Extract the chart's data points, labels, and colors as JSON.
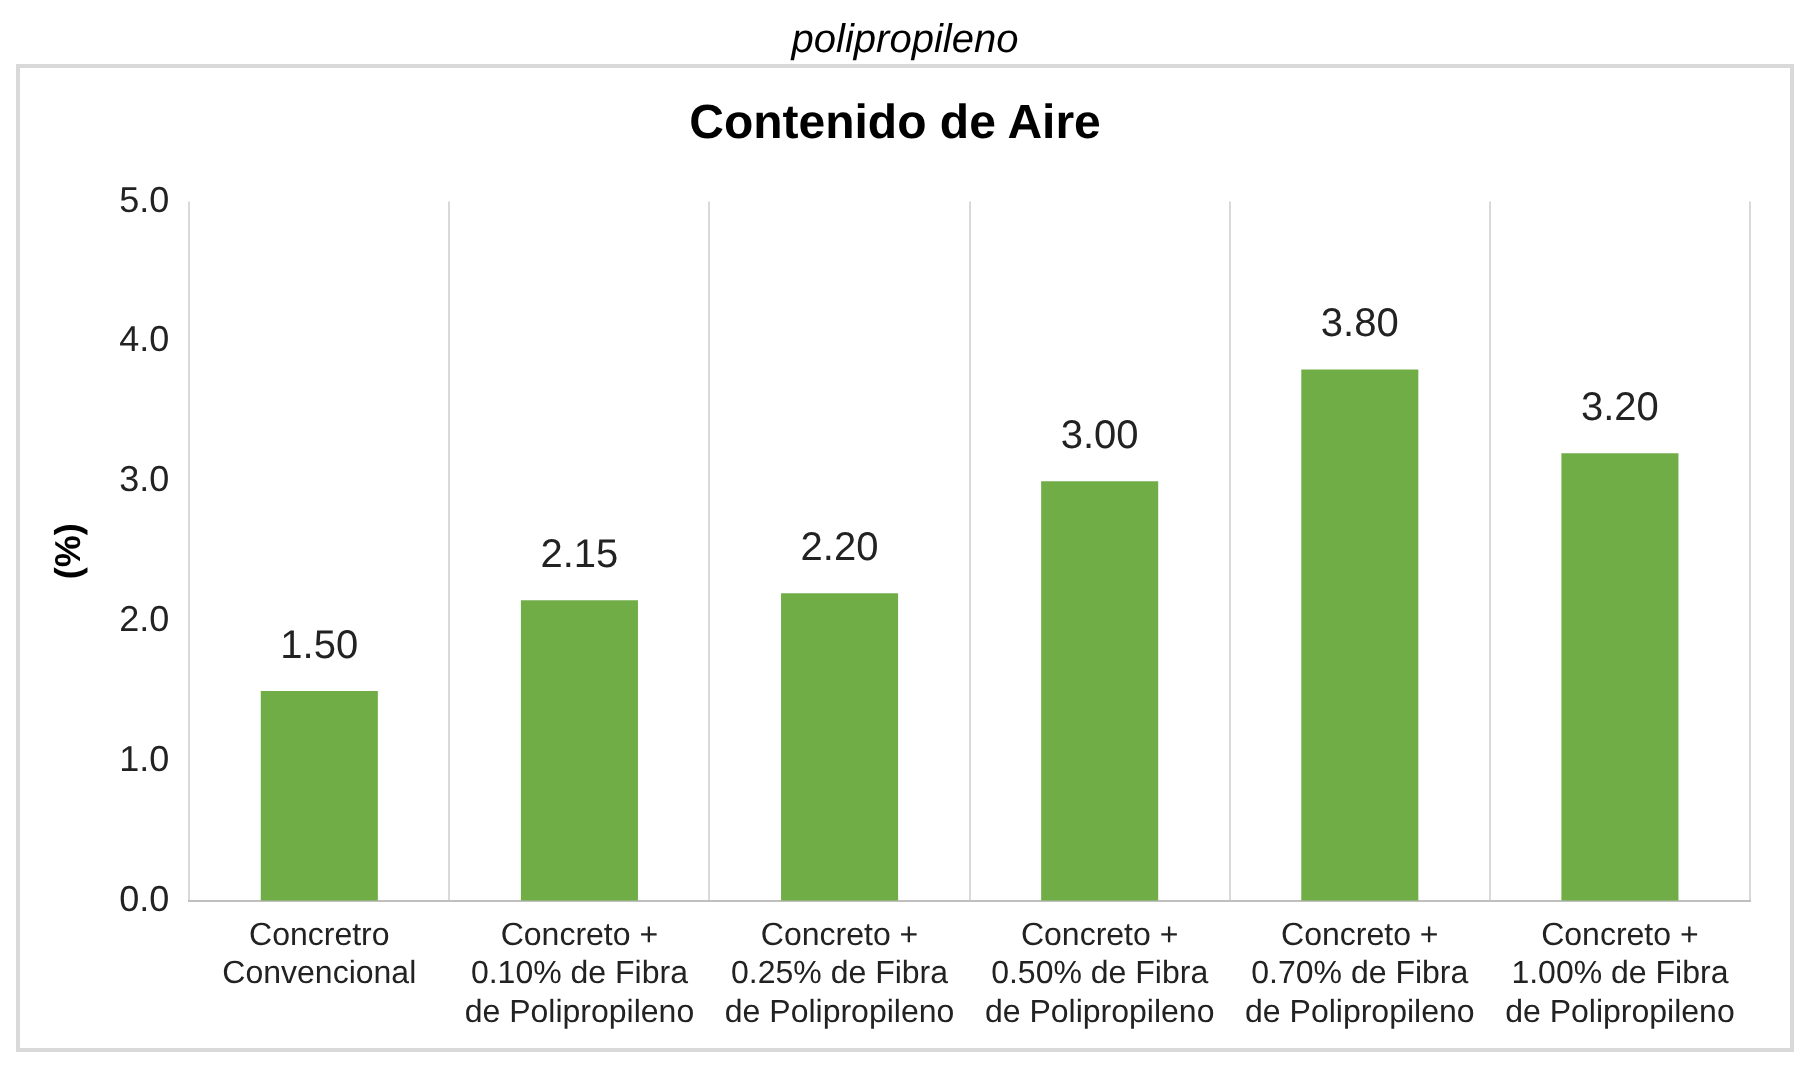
{
  "chart_data": {
    "type": "bar",
    "title": "Contenido de Aire",
    "ylabel": "(%)",
    "annotations": [
      "polipropileno"
    ],
    "categories": [
      "Concretro\nConvencional",
      "Concreto +\n0.10% de Fibra\nde Polipropileno",
      "Concreto +\n0.25% de Fibra\nde Polipropileno",
      "Concreto +\n0.50% de Fibra\nde Polipropileno",
      "Concreto +\n0.70% de Fibra\nde Polipropileno",
      "Concreto +\n1.00% de Fibra\nde Polipropileno"
    ],
    "values": [
      1.5,
      2.15,
      2.2,
      3.0,
      3.8,
      3.2
    ],
    "color": "#70ad47",
    "value_labels": [
      "1.50",
      "2.15",
      "2.20",
      "3.00",
      "3.80",
      "3.20"
    ],
    "ylim": [
      0,
      5
    ],
    "yticks": [
      {
        "value": 0,
        "label": "0.0"
      },
      {
        "value": 1,
        "label": "1.0"
      },
      {
        "value": 2,
        "label": "2.0"
      },
      {
        "value": 3,
        "label": "3.0"
      },
      {
        "value": 4,
        "label": "4.0"
      },
      {
        "value": 5,
        "label": "5.0"
      }
    ],
    "grid": "x",
    "legend": false
  }
}
